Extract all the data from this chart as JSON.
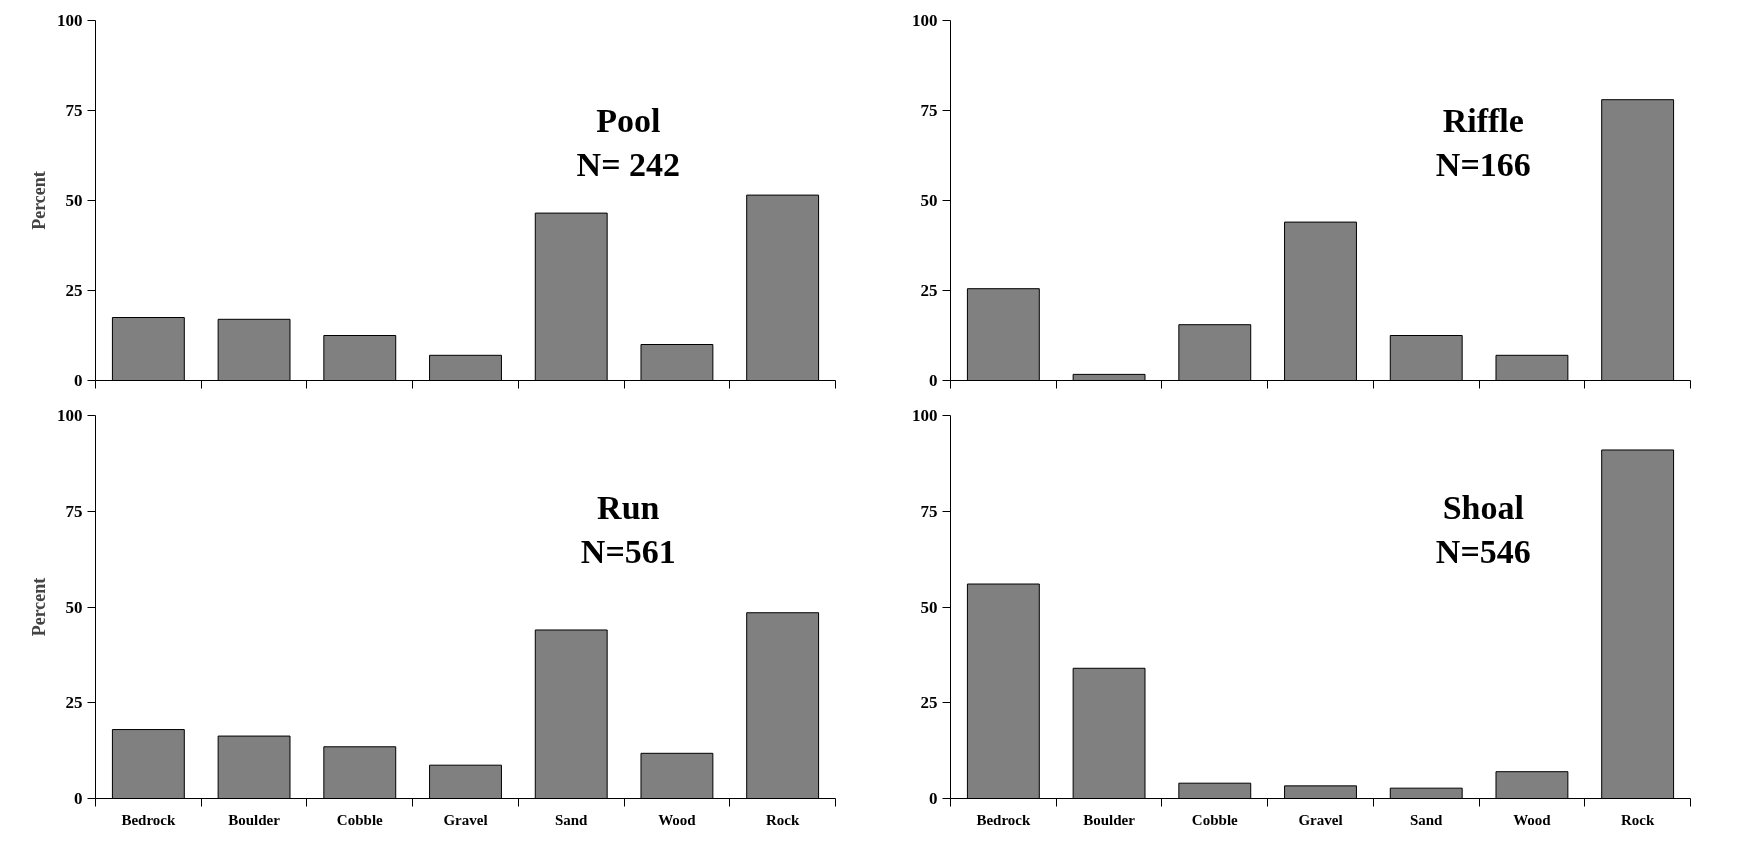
{
  "chart_data": [
    {
      "type": "bar",
      "annotations": [
        "Pool",
        "N= 242"
      ],
      "ylabel": "Percent",
      "categories": [
        null,
        null,
        null,
        null,
        null,
        null,
        null
      ],
      "values": [
        17.5,
        17,
        12.5,
        7,
        46.5,
        10,
        51.5
      ],
      "color": "#808080",
      "ylim": [
        0,
        100
      ],
      "yticks": [
        0,
        25,
        50,
        75,
        100
      ],
      "tick_labels": "y"
    },
    {
      "type": "bar",
      "annotations": [
        "Riffle",
        "N=166"
      ],
      "categories": [
        null,
        null,
        null,
        null,
        null,
        null,
        null
      ],
      "values": [
        25.5,
        1.7,
        15.5,
        44,
        12.5,
        7,
        78
      ],
      "color": "#808080",
      "ylim": [
        0,
        100
      ],
      "yticks": [
        0,
        25,
        50,
        75,
        100
      ],
      "tick_labels": "y"
    },
    {
      "type": "bar",
      "annotations": [
        "Run",
        "N=561"
      ],
      "ylabel": "Percent",
      "categories": [
        "Bedrock",
        "Boulder",
        "Cobble",
        "Gravel",
        "Sand",
        "Wood",
        "Rock"
      ],
      "values": [
        18,
        16.3,
        13.5,
        8.7,
        44,
        11.8,
        48.5
      ],
      "color": "#808080",
      "ylim": [
        0,
        100
      ],
      "yticks": [
        0,
        25,
        50,
        75,
        100
      ]
    },
    {
      "type": "bar",
      "annotations": [
        "Shoal",
        "N=546"
      ],
      "categories": [
        "Bedrock",
        "Boulder",
        "Cobble",
        "Gravel",
        "Sand",
        "Wood",
        "Rock"
      ],
      "values": [
        56,
        34,
        4,
        3.3,
        2.7,
        7,
        91
      ],
      "color": "#808080",
      "ylim": [
        0,
        100
      ],
      "yticks": [
        0,
        25,
        50,
        75,
        100
      ]
    }
  ]
}
